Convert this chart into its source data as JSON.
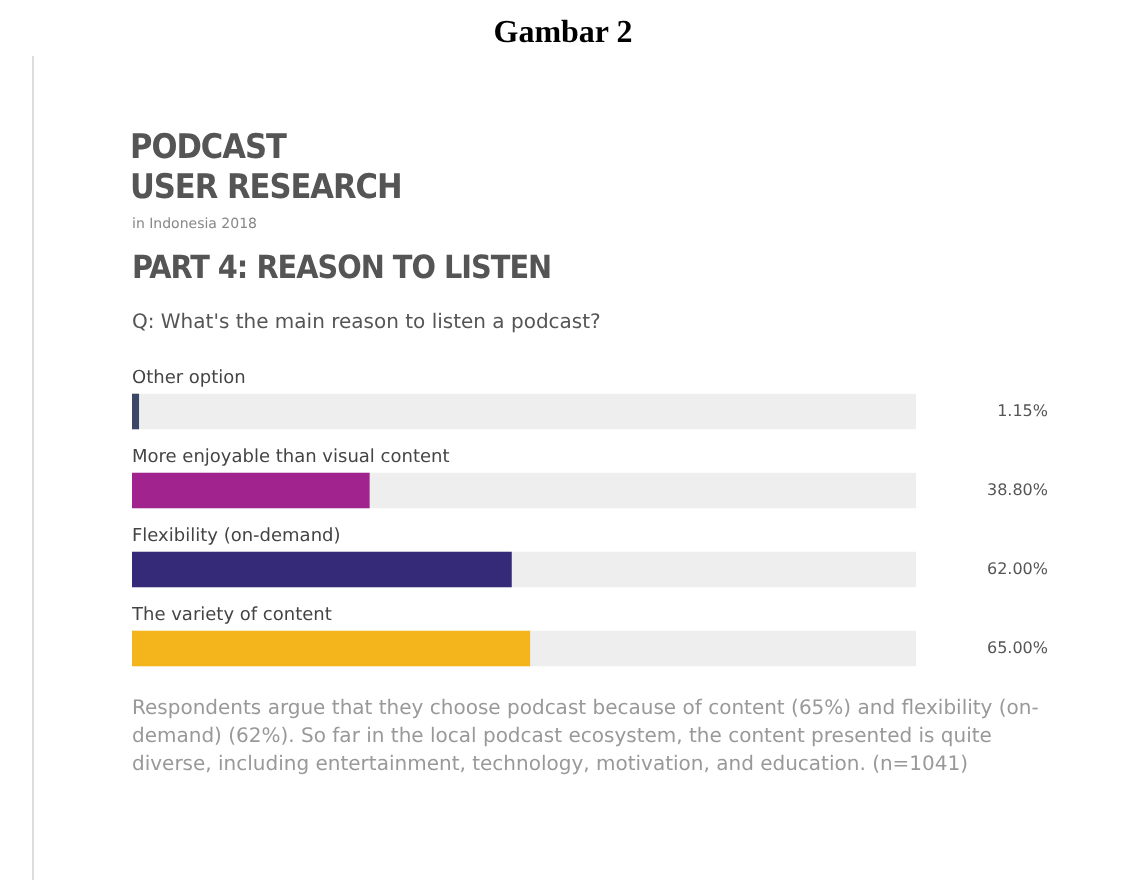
{
  "chart_data": {
    "type": "bar",
    "orientation": "horizontal",
    "title": "PODCAST\nUSER RESEARCH",
    "subtitle": "in Indonesia 2018",
    "annotations": [
      "Gambar 2",
      "PART 4: REASON TO LISTEN",
      "Q: What's the main reason to listen a podcast?",
      "Respondents argue that they choose podcast because of content (65%) and flexibility (on-demand) (62%). So far in the local podcast ecosystem, the content presented is quite diverse, including entertainment, technology, motivation, and education. (n=1041)"
    ],
    "categories": [
      "Other option",
      "More enjoyable than visual content",
      "Flexibility (on-demand)",
      "The variety of content"
    ],
    "values": [
      1.15,
      38.8,
      62,
      65
    ],
    "colors": [
      "#3a4766",
      "#a1248e",
      "#352a78",
      "#f4b41c"
    ],
    "value_labels": [
      "1.15%",
      "38.80%",
      "62.00%",
      "65.00%"
    ],
    "xlim": [
      0,
      128
    ],
    "tick_labels": false
  }
}
